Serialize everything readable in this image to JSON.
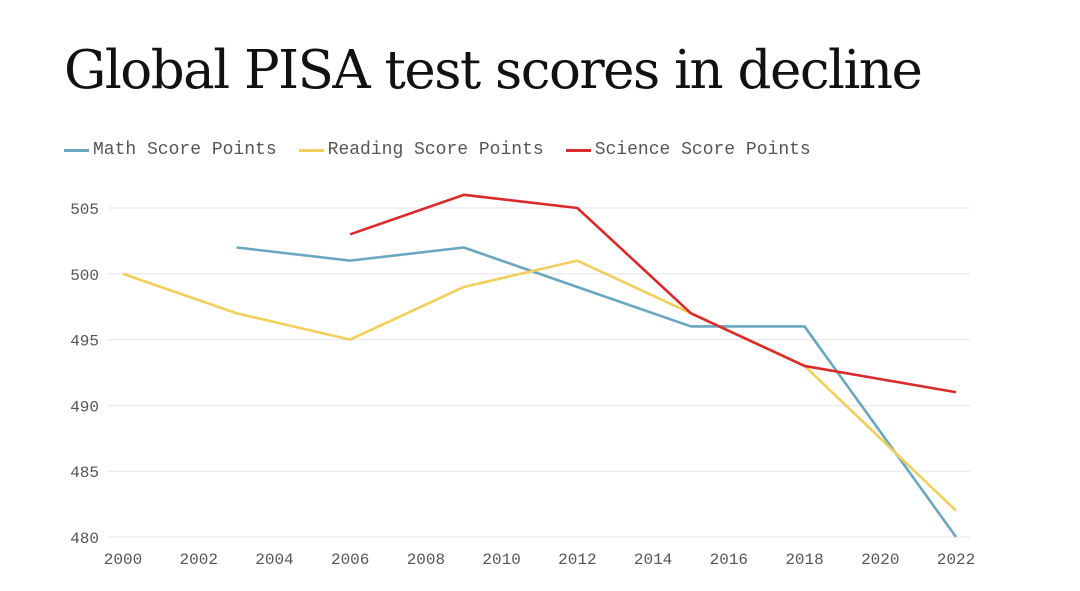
{
  "chart_data": {
    "type": "line",
    "title": "Global PISA test scores in decline",
    "xlabel": "",
    "ylabel": "",
    "x_ticks": [
      "2000",
      "2002",
      "2004",
      "2006",
      "2008",
      "2010",
      "2012",
      "2014",
      "2016",
      "2018",
      "2020",
      "2022"
    ],
    "y_ticks": [
      "505",
      "500",
      "495",
      "490",
      "485",
      "480"
    ],
    "xlim": [
      2000,
      2022
    ],
    "ylim": [
      480,
      507
    ],
    "grid": true,
    "legend_position": "top-left",
    "series": [
      {
        "name": "Math Score Points",
        "color": "#6aa7bf",
        "x": [
          2003,
          2006,
          2009,
          2012,
          2015,
          2018,
          2022
        ],
        "values": [
          502,
          501,
          502,
          499,
          496,
          496,
          480
        ]
      },
      {
        "name": "Reading Score Points",
        "color": "#f2ce5b",
        "x": [
          2000,
          2003,
          2006,
          2009,
          2012,
          2015,
          2018,
          2022
        ],
        "values": [
          500,
          497,
          495,
          499,
          501,
          497,
          493,
          482
        ]
      },
      {
        "name": "Science Score Points",
        "color": "#d92b2b",
        "x": [
          2006,
          2009,
          2012,
          2015,
          2018,
          2022
        ],
        "values": [
          503,
          506,
          505,
          497,
          493,
          491
        ]
      }
    ]
  }
}
